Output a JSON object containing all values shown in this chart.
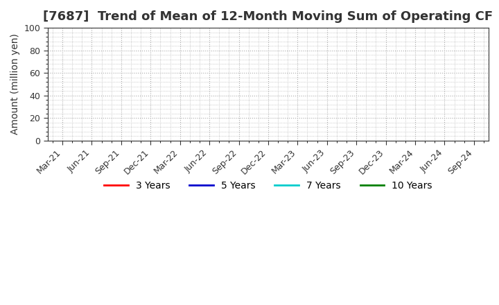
{
  "title": "[7687]  Trend of Mean of 12-Month Moving Sum of Operating CF",
  "ylabel": "Amount (million yen)",
  "ylim": [
    0,
    100
  ],
  "yticks": [
    0,
    20,
    40,
    60,
    80,
    100
  ],
  "x_labels": [
    "Mar-21",
    "Jun-21",
    "Sep-21",
    "Dec-21",
    "Mar-22",
    "Jun-22",
    "Sep-22",
    "Dec-22",
    "Mar-23",
    "Jun-23",
    "Sep-23",
    "Dec-23",
    "Mar-24",
    "Jun-24",
    "Sep-24"
  ],
  "legend_entries": [
    {
      "label": "3 Years",
      "color": "#ff0000"
    },
    {
      "label": "5 Years",
      "color": "#0000cd"
    },
    {
      "label": "7 Years",
      "color": "#00cccc"
    },
    {
      "label": "10 Years",
      "color": "#008000"
    }
  ],
  "grid_color": "#aaaaaa",
  "background_color": "#ffffff",
  "title_color": "#333333",
  "title_fontsize": 13,
  "axis_label_fontsize": 10,
  "tick_fontsize": 9,
  "legend_fontsize": 10
}
